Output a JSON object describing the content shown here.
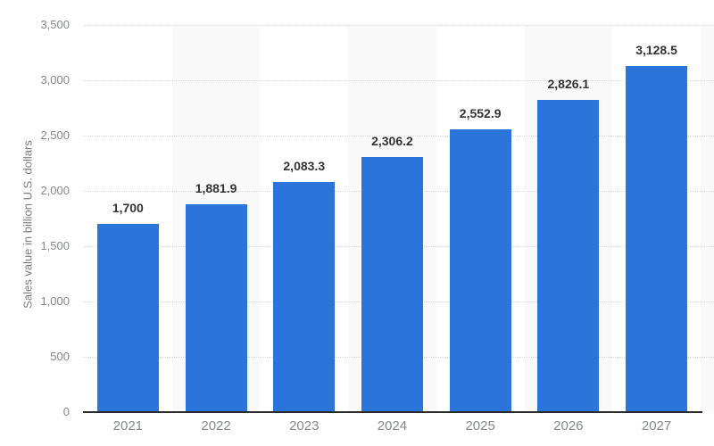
{
  "chart_data": {
    "type": "bar",
    "title": "",
    "categories": [
      "2021",
      "2022",
      "2023",
      "2024",
      "2025",
      "2026",
      "2027"
    ],
    "values": [
      1700,
      1881.9,
      2083.3,
      2306.2,
      2552.9,
      2826.1,
      3128.5
    ],
    "value_labels": [
      "1,700",
      "1,881.9",
      "2,083.3",
      "2,306.2",
      "2,552.9",
      "2,826.1",
      "3,128.5"
    ],
    "xlabel": "",
    "ylabel": "Sales value in billion U.S. dollars",
    "ylim": [
      0,
      3500
    ],
    "ytick_values": [
      0,
      500,
      1000,
      1500,
      2000,
      2500,
      3000,
      3500
    ],
    "ytick_labels": [
      "0",
      "500",
      "1,000",
      "1,500",
      "2,000",
      "2,500",
      "3,000",
      "3,500"
    ],
    "grid": "horizontal dotted gridlines at 500 intervals",
    "legend_position": "none",
    "plot_bands": "alternating light gray column bands behind 2022, 2024, 2026 and partial band at right edge",
    "colors": {
      "bar": "#2a74da",
      "plot_band": "#f9f9f9",
      "gridline": "#d8d8d8",
      "axis_line": "#2b2b2b",
      "tick_label": "#85888c",
      "data_label": "#333333",
      "axis_title": "#7a7d80",
      "background": "#ffffff"
    }
  }
}
